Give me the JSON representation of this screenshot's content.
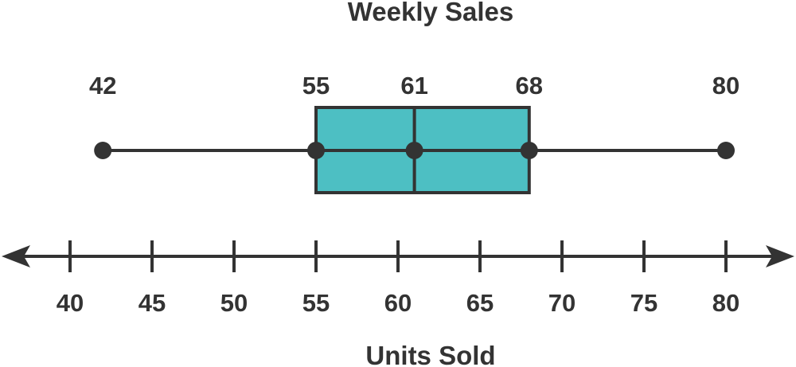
{
  "chart_data": {
    "type": "boxplot",
    "title": "Weekly Sales",
    "xlabel": "Units Sold",
    "xlim": [
      40,
      80
    ],
    "ticks": [
      40,
      45,
      50,
      55,
      60,
      65,
      70,
      75,
      80
    ],
    "summary": {
      "min": 42,
      "q1": 55,
      "median": 61,
      "q3": 68,
      "max": 80
    },
    "value_labels": [
      "42",
      "55",
      "61",
      "68",
      "80"
    ],
    "colors": {
      "box_fill": "#4DBFC3",
      "stroke": "#333333"
    }
  }
}
